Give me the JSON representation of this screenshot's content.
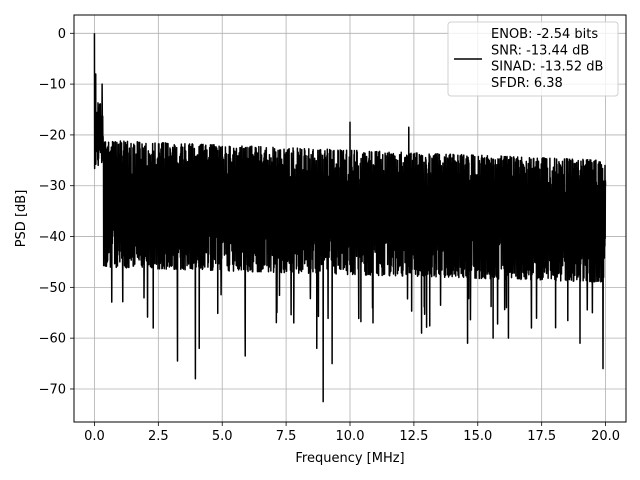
{
  "chart_data": {
    "type": "line",
    "title": "",
    "xlabel": "Frequency [MHz]",
    "ylabel": "PSD [dB]",
    "xlim": [
      -0.8,
      20.8
    ],
    "ylim": [
      -76.5,
      3.6
    ],
    "xticks": [
      0.0,
      2.5,
      5.0,
      7.5,
      10.0,
      12.5,
      15.0,
      17.5,
      20.0
    ],
    "xtick_labels": [
      "0.0",
      "2.5",
      "5.0",
      "7.5",
      "10.0",
      "12.5",
      "15.0",
      "17.5",
      "20.0"
    ],
    "yticks": [
      0,
      -10,
      -20,
      -30,
      -40,
      -50,
      -60,
      -70
    ],
    "ytick_labels": [
      "0",
      "−10",
      "−20",
      "−30",
      "−40",
      "−50",
      "−60",
      "−70"
    ],
    "grid": true,
    "legend_position": "top-right",
    "series": [
      {
        "name": "ENOB: -2.54 bits\nSNR: -13.44 dB\nSINAD: -13.52 dB\nSFDR: 6.38",
        "color": "#000000",
        "description": "Dense noisy power spectral density trace over 0-20 MHz; peak 0 dB at DC, floor between about -20 and -50 dB with dips to about -73 dB",
        "peak_points": [
          [
            0.0,
            0.0
          ],
          [
            0.05,
            -8.0
          ],
          [
            0.2,
            -14.0
          ],
          [
            0.3,
            -10.0
          ],
          [
            10.0,
            -17.5
          ],
          [
            12.3,
            -18.5
          ]
        ],
        "dips": [
          [
            2.3,
            -58.0
          ],
          [
            3.25,
            -64.5
          ],
          [
            3.95,
            -68.0
          ],
          [
            4.1,
            -62.0
          ],
          [
            5.9,
            -63.5
          ],
          [
            7.8,
            -57.0
          ],
          [
            8.7,
            -62.0
          ],
          [
            8.95,
            -72.5
          ],
          [
            9.3,
            -65.0
          ],
          [
            10.9,
            -57.0
          ],
          [
            12.8,
            -59.0
          ],
          [
            14.6,
            -61.0
          ],
          [
            15.6,
            -60.0
          ],
          [
            16.2,
            -60.0
          ],
          [
            17.1,
            -58.0
          ],
          [
            19.0,
            -61.0
          ],
          [
            19.9,
            -66.0
          ]
        ]
      }
    ]
  }
}
